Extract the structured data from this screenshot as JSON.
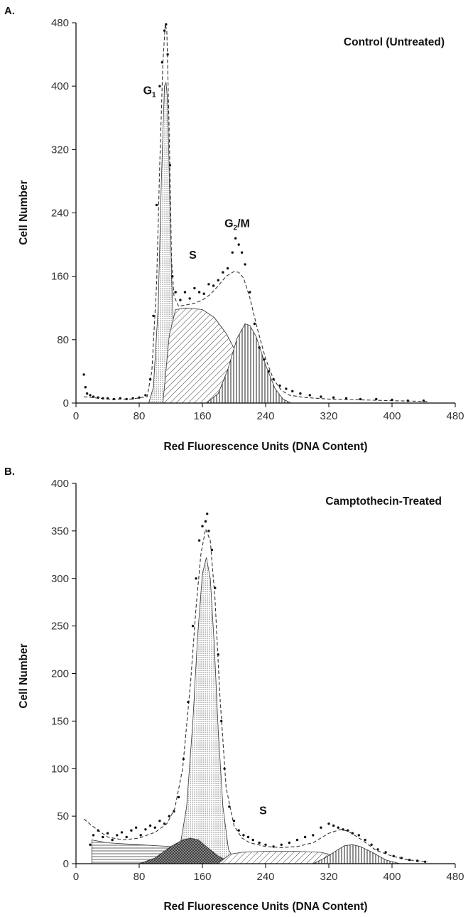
{
  "chart_data": [
    {
      "panel_label": "A.",
      "type": "line",
      "title": "Control (Untreated)",
      "xlabel": "Red Fluorescence Units (DNA Content)",
      "ylabel": "Cell Number",
      "xlim": [
        0,
        480
      ],
      "ylim": [
        0,
        480
      ],
      "xticks": [
        0,
        80,
        160,
        240,
        320,
        400,
        480
      ],
      "yticks": [
        0,
        80,
        160,
        240,
        320,
        400,
        480
      ],
      "grid": false,
      "annotations": [
        {
          "main": "G",
          "sub": "1",
          "rest": "",
          "x": 85,
          "y": 390
        },
        {
          "main": "S",
          "sub": "",
          "rest": "",
          "x": 143,
          "y": 182
        },
        {
          "main": "G",
          "sub": "2",
          "rest": "/M",
          "x": 188,
          "y": 222
        }
      ],
      "series": [
        {
          "role": "fitted-total",
          "style": "dashed",
          "x": [
            10,
            40,
            70,
            90,
            96,
            102,
            106,
            110,
            113,
            115,
            118,
            121,
            124,
            130,
            140,
            150,
            160,
            170,
            180,
            190,
            200,
            206,
            212,
            220,
            230,
            240,
            250,
            260,
            270,
            290,
            320,
            360,
            400,
            445
          ],
          "y": [
            8,
            5,
            5,
            8,
            40,
            150,
            300,
            430,
            478,
            470,
            340,
            180,
            135,
            122,
            124,
            126,
            130,
            137,
            148,
            160,
            166,
            165,
            158,
            133,
            92,
            56,
            30,
            16,
            10,
            7,
            5,
            4,
            3,
            2
          ]
        },
        {
          "role": "data-points",
          "style": "points",
          "x": [
            10,
            12,
            14,
            18,
            22,
            28,
            34,
            40,
            48,
            56,
            64,
            72,
            80,
            88,
            94,
            98,
            102,
            106,
            109,
            112,
            114,
            116,
            119,
            122,
            126,
            132,
            138,
            144,
            150,
            156,
            162,
            168,
            174,
            180,
            186,
            192,
            198,
            202,
            206,
            210,
            214,
            220,
            226,
            232,
            238,
            244,
            250,
            258,
            266,
            274,
            284,
            296,
            310,
            326,
            342,
            360,
            380,
            400,
            420,
            440
          ],
          "y": [
            36,
            20,
            12,
            10,
            8,
            7,
            6,
            6,
            5,
            6,
            5,
            6,
            7,
            10,
            30,
            110,
            250,
            400,
            430,
            470,
            478,
            440,
            300,
            160,
            140,
            130,
            140,
            132,
            145,
            140,
            138,
            150,
            148,
            155,
            165,
            170,
            190,
            208,
            200,
            190,
            175,
            140,
            100,
            70,
            55,
            40,
            30,
            22,
            18,
            15,
            12,
            10,
            8,
            7,
            6,
            5,
            5,
            4,
            3,
            3
          ]
        },
        {
          "role": "G1-component",
          "style": "filled-dotted",
          "x": [
            92,
            98,
            104,
            108,
            112,
            114,
            116,
            118,
            121,
            124,
            128,
            132
          ],
          "y": [
            0,
            20,
            120,
            280,
            400,
            405,
            380,
            290,
            160,
            70,
            20,
            0
          ]
        },
        {
          "role": "S-component",
          "style": "filled-hatched",
          "x": [
            110,
            118,
            126,
            140,
            160,
            175,
            190,
            205,
            220,
            235,
            250,
            265
          ],
          "y": [
            0,
            85,
            118,
            120,
            118,
            108,
            88,
            60,
            32,
            12,
            4,
            0
          ]
        },
        {
          "role": "G2M-component",
          "style": "filled-vertical-hatched",
          "x": [
            165,
            180,
            192,
            204,
            214,
            220,
            228,
            240,
            252,
            262,
            272
          ],
          "y": [
            0,
            12,
            42,
            82,
            100,
            98,
            84,
            48,
            18,
            5,
            0
          ]
        }
      ]
    },
    {
      "panel_label": "B.",
      "type": "line",
      "title": "Camptothecin-Treated",
      "xlabel": "Red Fluorescence Units (DNA Content)",
      "ylabel": "Cell Number",
      "xlim": [
        0,
        480
      ],
      "ylim": [
        0,
        400
      ],
      "xticks": [
        0,
        80,
        160,
        240,
        320,
        400,
        480
      ],
      "yticks": [
        0,
        50,
        100,
        150,
        200,
        250,
        300,
        350,
        400
      ],
      "grid": false,
      "annotations": [
        {
          "main": "S",
          "sub": "",
          "rest": "",
          "x": 232,
          "y": 52
        }
      ],
      "series": [
        {
          "role": "fitted-total",
          "style": "dashed",
          "x": [
            10,
            20,
            40,
            60,
            80,
            100,
            115,
            125,
            135,
            145,
            152,
            158,
            164,
            170,
            176,
            182,
            190,
            200,
            210,
            220,
            240,
            260,
            280,
            300,
            320,
            335,
            345,
            360,
            380,
            400,
            420,
            445
          ],
          "y": [
            47,
            40,
            28,
            25,
            27,
            33,
            42,
            58,
            100,
            190,
            270,
            325,
            352,
            340,
            278,
            178,
            80,
            40,
            27,
            22,
            18,
            17,
            18,
            22,
            32,
            36,
            34,
            26,
            14,
            8,
            4,
            2
          ]
        },
        {
          "role": "data-points",
          "style": "points",
          "x": [
            18,
            22,
            28,
            34,
            40,
            46,
            52,
            58,
            64,
            70,
            76,
            82,
            88,
            94,
            100,
            106,
            112,
            118,
            124,
            130,
            136,
            142,
            148,
            152,
            156,
            160,
            164,
            166,
            168,
            172,
            176,
            180,
            184,
            188,
            194,
            200,
            206,
            212,
            218,
            224,
            232,
            240,
            250,
            260,
            270,
            280,
            290,
            300,
            310,
            320,
            326,
            332,
            338,
            344,
            350,
            358,
            366,
            374,
            382,
            392,
            402,
            412,
            422,
            432,
            442
          ],
          "y": [
            20,
            30,
            35,
            28,
            32,
            25,
            30,
            33,
            28,
            35,
            38,
            30,
            36,
            40,
            38,
            45,
            42,
            50,
            55,
            70,
            110,
            170,
            250,
            300,
            340,
            355,
            360,
            368,
            350,
            330,
            290,
            220,
            150,
            100,
            60,
            45,
            35,
            30,
            28,
            25,
            22,
            20,
            18,
            20,
            22,
            25,
            28,
            30,
            38,
            42,
            40,
            38,
            36,
            35,
            32,
            30,
            25,
            20,
            15,
            12,
            8,
            6,
            4,
            3,
            2
          ]
        },
        {
          "role": "G0G1-peak-component",
          "style": "filled-dotted",
          "x": [
            120,
            130,
            140,
            148,
            154,
            160,
            165,
            170,
            175,
            180,
            186,
            193,
            203
          ],
          "y": [
            0,
            10,
            60,
            150,
            240,
            305,
            322,
            300,
            230,
            140,
            60,
            15,
            0
          ]
        },
        {
          "role": "low-DNA-component",
          "style": "filled-horizontal-lined",
          "x": [
            20,
            20,
            40,
            80,
            120,
            140,
            160,
            180,
            200,
            210
          ],
          "y": [
            0,
            25,
            22,
            20,
            18,
            15,
            10,
            6,
            2,
            0
          ]
        },
        {
          "role": "shoulder-component",
          "style": "filled-dark-crosshatch",
          "x": [
            80,
            100,
            120,
            135,
            145,
            155,
            165,
            180,
            195,
            210
          ],
          "y": [
            0,
            6,
            18,
            25,
            27,
            25,
            18,
            8,
            2,
            0
          ]
        },
        {
          "role": "S-component",
          "style": "filled-hatched",
          "x": [
            180,
            195,
            210,
            240,
            280,
            310,
            330,
            350
          ],
          "y": [
            0,
            10,
            12,
            13,
            13,
            12,
            8,
            0
          ]
        },
        {
          "role": "G2M-component",
          "style": "filled-vertical-hatched",
          "x": [
            300,
            315,
            330,
            340,
            350,
            360,
            375,
            392,
            410
          ],
          "y": [
            0,
            6,
            14,
            19,
            20,
            18,
            12,
            4,
            0
          ]
        }
      ]
    }
  ]
}
